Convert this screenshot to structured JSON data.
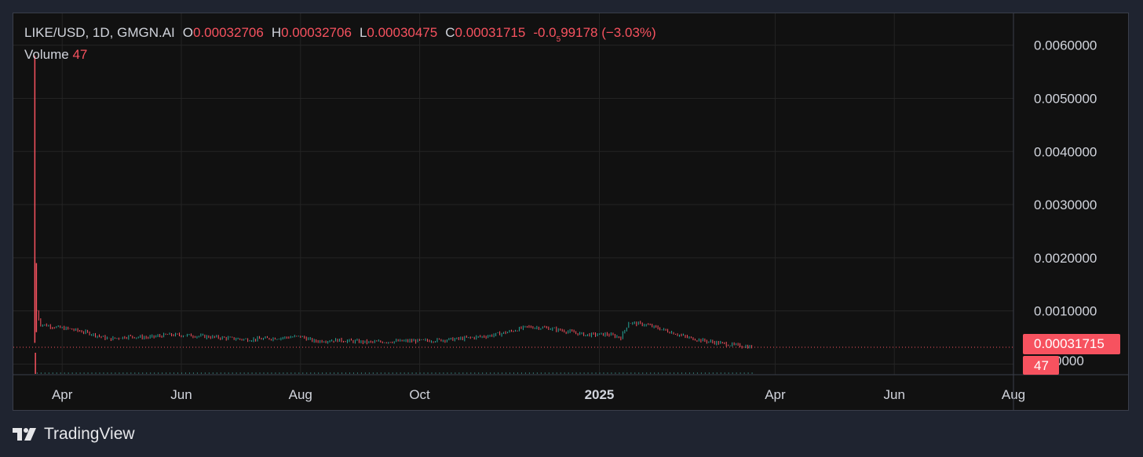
{
  "legend": {
    "symbol": "LIKE/USD, 1D, GMGN.AI",
    "open_label": "O",
    "open": "0.00032706",
    "high_label": "H",
    "high": "0.00032706",
    "low_label": "L",
    "low": "0.00030475",
    "close_label": "C",
    "close": "0.00031715",
    "change_prefix": "-0.0",
    "change_sub": "5",
    "change_rest": "99178",
    "change_pct": "(−3.03%)",
    "volume_label": "Volume",
    "volume": "47"
  },
  "price_tag": "0.00031715",
  "volume_tag": "47",
  "hidden_tick_partial": "0000",
  "branding": {
    "name": "TradingView",
    "icon": "tradingview-logo-icon"
  },
  "colors": {
    "up": "#26a69a",
    "down": "#f7525f",
    "background": "#111111",
    "grid": "#242424",
    "text": "#d1d4dc"
  },
  "chart_data": {
    "type": "candlestick",
    "title": "LIKE/USD, 1D, GMGN.AI",
    "y_ticks": [
      "0.0060000",
      "0.0050000",
      "0.0040000",
      "0.0030000",
      "0.0020000",
      "0.0010000"
    ],
    "ylim": [
      -0.0002,
      0.0066
    ],
    "x_ticks": [
      {
        "label": "Apr",
        "date": "2024-04-01",
        "bold": false
      },
      {
        "label": "Jun",
        "date": "2024-06-01",
        "bold": false
      },
      {
        "label": "Aug",
        "date": "2024-08-01",
        "bold": false
      },
      {
        "label": "Oct",
        "date": "2024-10-01",
        "bold": false
      },
      {
        "label": "2025",
        "date": "2025-01-01",
        "bold": true
      },
      {
        "label": "Apr",
        "date": "2025-04-01",
        "bold": false
      },
      {
        "label": "Jun",
        "date": "2025-06-01",
        "bold": false
      },
      {
        "label": "Aug",
        "date": "2025-08-01",
        "bold": false
      }
    ],
    "xlim": [
      "2024-03-07",
      "2025-08-01"
    ],
    "close_series": {
      "start_date": "2024-03-19",
      "points": [
        [
          "2024-03-19",
          0.001
        ],
        [
          "2024-03-20",
          0.00085
        ],
        [
          "2024-03-21",
          0.00075
        ],
        [
          "2024-03-25",
          0.00072
        ],
        [
          "2024-03-31",
          0.00068
        ],
        [
          "2024-04-05",
          0.00066
        ],
        [
          "2024-04-15",
          0.00058
        ],
        [
          "2024-04-25",
          0.00047
        ],
        [
          "2024-05-05",
          0.00052
        ],
        [
          "2024-05-15",
          0.0005
        ],
        [
          "2024-05-25",
          0.00055
        ],
        [
          "2024-06-05",
          0.00054
        ],
        [
          "2024-06-20",
          0.0005
        ],
        [
          "2024-07-05",
          0.00046
        ],
        [
          "2024-07-20",
          0.00049
        ],
        [
          "2024-08-01",
          0.00052
        ],
        [
          "2024-08-08",
          0.00043
        ],
        [
          "2024-08-20",
          0.00045
        ],
        [
          "2024-09-05",
          0.00041
        ],
        [
          "2024-09-20",
          0.00043
        ],
        [
          "2024-10-05",
          0.00044
        ],
        [
          "2024-10-20",
          0.00047
        ],
        [
          "2024-11-05",
          0.00053
        ],
        [
          "2024-11-15",
          0.0006
        ],
        [
          "2024-11-25",
          0.0007
        ],
        [
          "2024-12-05",
          0.00068
        ],
        [
          "2024-12-15",
          0.00062
        ],
        [
          "2024-12-25",
          0.00055
        ],
        [
          "2025-01-05",
          0.00056
        ],
        [
          "2025-01-12",
          0.0005
        ],
        [
          "2025-01-16",
          0.00078
        ],
        [
          "2025-01-25",
          0.00074
        ],
        [
          "2025-02-05",
          0.00062
        ],
        [
          "2025-02-15",
          0.0005
        ],
        [
          "2025-02-25",
          0.00043
        ],
        [
          "2025-03-10",
          0.00036
        ],
        [
          "2025-03-20",
          0.00032
        ]
      ]
    },
    "spike": {
      "date": "2024-03-18",
      "high": 0.0058,
      "low": 0.0004,
      "secondary_high": 0.0019
    },
    "last_close": 0.00031715,
    "volume_spike_date": "2024-03-18"
  }
}
